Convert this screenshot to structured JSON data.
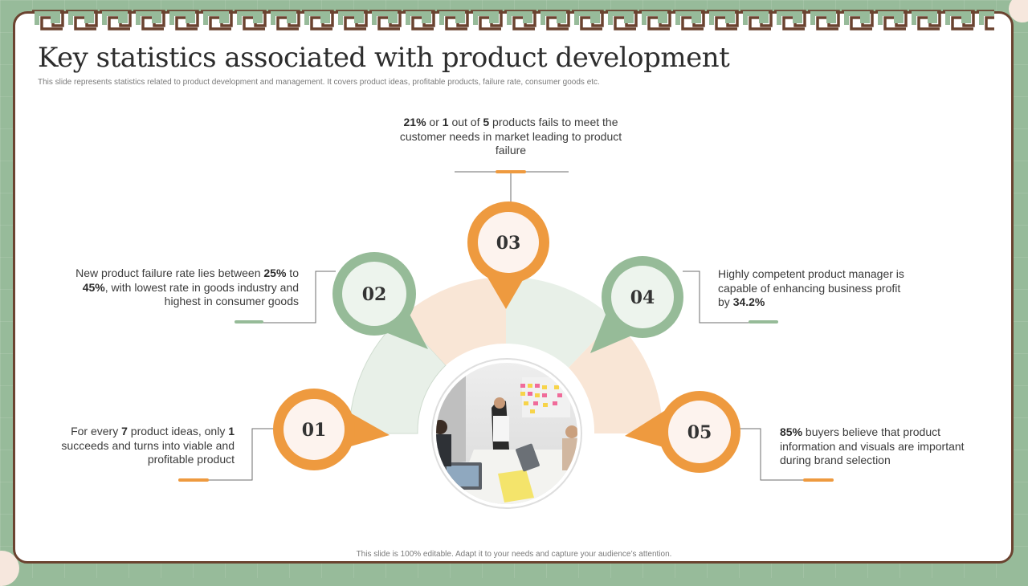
{
  "title": "Key statistics associated with product development",
  "subtitle": "This slide represents statistics related to product development and management.  It covers product ideas, profitable products, failure rate, consumer goods etc.",
  "footer": "This slide is 100% editable.  Adapt it to your needs and capture your audience’s attention.",
  "colors": {
    "orange": "#ee9a3f",
    "green": "#96bb98",
    "peach": "#f9e6d6",
    "mint": "#e8f0e8",
    "brown": "#6b4330",
    "pin_inner": "#fdf3ee"
  },
  "stats": [
    {
      "number": "01",
      "color": "orange",
      "segments": [
        {
          "text": "For every ",
          "bold": false
        },
        {
          "text": "7",
          "bold": true
        },
        {
          "text": " product ideas, only ",
          "bold": false
        },
        {
          "text": "1",
          "bold": true
        },
        {
          "text": " succeeds and turns into viable and profitable product",
          "bold": false
        }
      ]
    },
    {
      "number": "02",
      "color": "green",
      "segments": [
        {
          "text": "New product failure rate lies between ",
          "bold": false
        },
        {
          "text": "25%",
          "bold": true
        },
        {
          "text": " to ",
          "bold": false
        },
        {
          "text": "45%",
          "bold": true
        },
        {
          "text": ", with lowest rate in goods industry and highest in consumer goods",
          "bold": false
        }
      ]
    },
    {
      "number": "03",
      "color": "orange",
      "segments": [
        {
          "text": "21%",
          "bold": true
        },
        {
          "text": " or ",
          "bold": false
        },
        {
          "text": "1",
          "bold": true
        },
        {
          "text": " out of ",
          "bold": false
        },
        {
          "text": "5",
          "bold": true
        },
        {
          "text": " products fails to meet the customer needs in market leading to product failure",
          "bold": false
        }
      ]
    },
    {
      "number": "04",
      "color": "green",
      "segments": [
        {
          "text": "Highly competent product manager is capable of enhancing business profit by ",
          "bold": false
        },
        {
          "text": "34.2%",
          "bold": true
        }
      ]
    },
    {
      "number": "05",
      "color": "orange",
      "segments": [
        {
          "text": "85%",
          "bold": true
        },
        {
          "text": " buyers believe that product information and visuals are important during brand selection",
          "bold": false
        }
      ]
    }
  ]
}
